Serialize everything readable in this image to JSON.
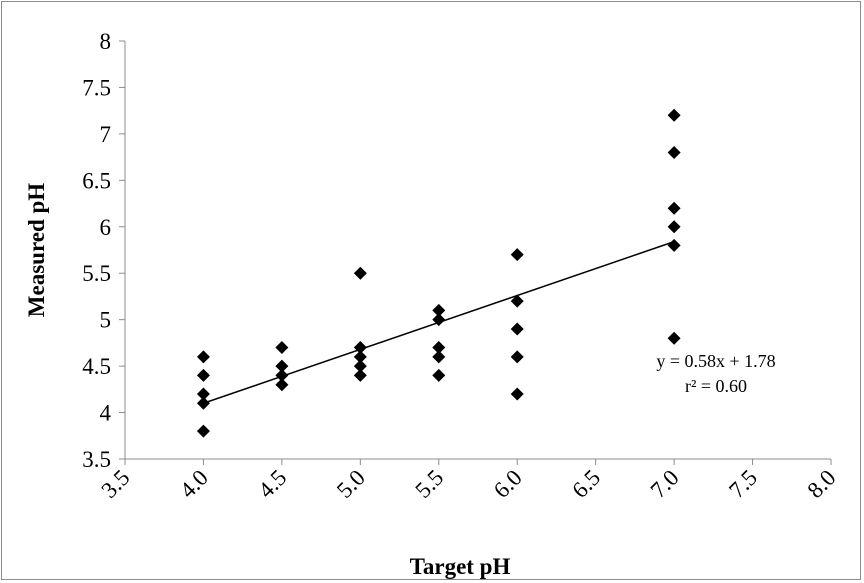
{
  "chart_data": {
    "type": "scatter",
    "xlabel": "Target pH",
    "ylabel": "Measured pH",
    "xlim": [
      3.5,
      8.0
    ],
    "ylim": [
      3.5,
      8.0
    ],
    "x_ticks": [
      "3.5",
      "4.0",
      "4.5",
      "5.0",
      "5.5",
      "6.0",
      "6.5",
      "7.0",
      "7.5",
      "8.0"
    ],
    "y_ticks": [
      "3.5",
      "4",
      "4.5",
      "5",
      "5.5",
      "6",
      "6.5",
      "7",
      "7.5",
      "8"
    ],
    "grid": false,
    "series": [
      {
        "marker": "diamond",
        "color": "#000000",
        "points": [
          [
            4.0,
            4.6
          ],
          [
            4.0,
            4.4
          ],
          [
            4.0,
            4.2
          ],
          [
            4.0,
            4.1
          ],
          [
            4.0,
            3.8
          ],
          [
            4.5,
            4.7
          ],
          [
            4.5,
            4.5
          ],
          [
            4.5,
            4.4
          ],
          [
            4.5,
            4.3
          ],
          [
            5.0,
            5.5
          ],
          [
            5.0,
            4.7
          ],
          [
            5.0,
            4.6
          ],
          [
            5.0,
            4.5
          ],
          [
            5.0,
            4.4
          ],
          [
            5.5,
            5.1
          ],
          [
            5.5,
            5.0
          ],
          [
            5.5,
            4.7
          ],
          [
            5.5,
            4.6
          ],
          [
            5.5,
            4.4
          ],
          [
            6.0,
            5.7
          ],
          [
            6.0,
            5.2
          ],
          [
            6.0,
            4.9
          ],
          [
            6.0,
            4.6
          ],
          [
            6.0,
            4.2
          ],
          [
            7.0,
            7.2
          ],
          [
            7.0,
            6.8
          ],
          [
            7.0,
            6.2
          ],
          [
            7.0,
            6.0
          ],
          [
            7.0,
            5.8
          ],
          [
            7.0,
            4.8
          ]
        ]
      }
    ],
    "trendline": {
      "slope": 0.58,
      "intercept": 1.78,
      "x_range": [
        4.0,
        7.0
      ],
      "color": "#000000"
    },
    "annotations": [
      "y = 0.58x + 1.78",
      "r² = 0.60"
    ]
  }
}
